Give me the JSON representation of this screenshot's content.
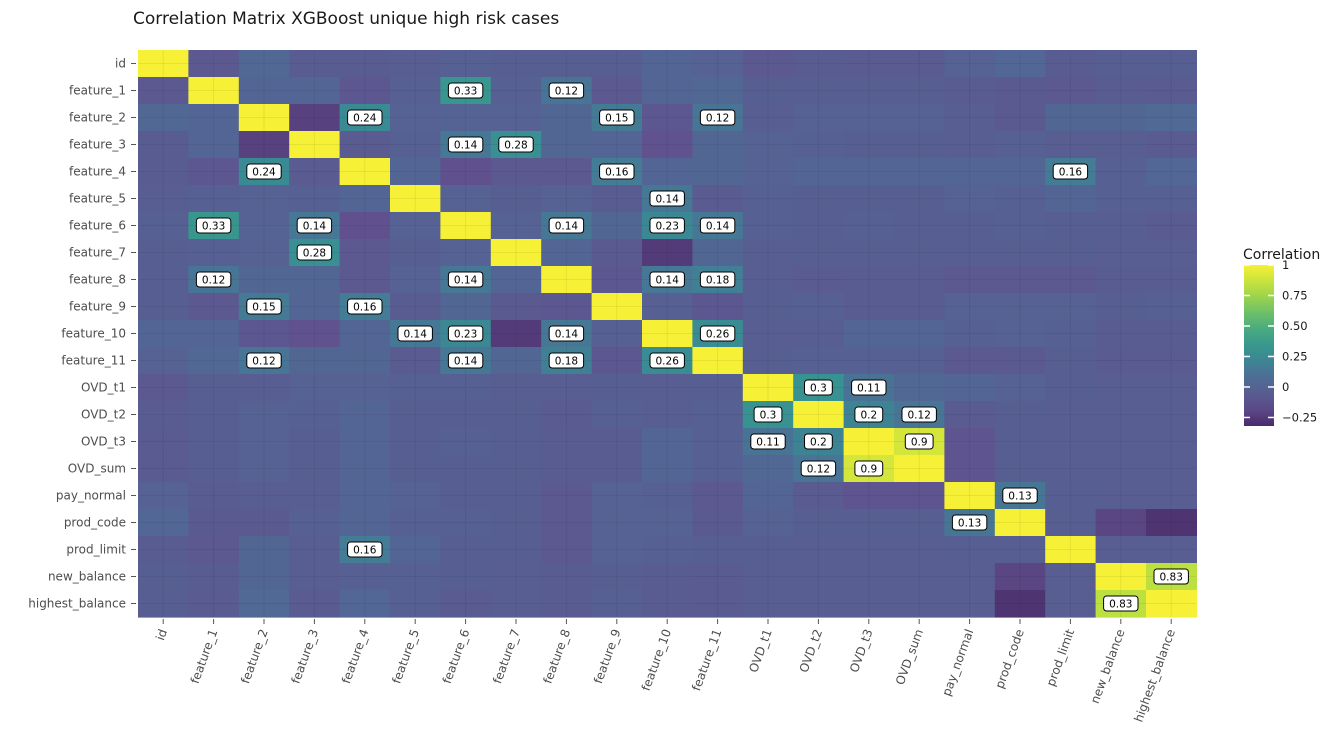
{
  "chart_data": {
    "type": "heatmap",
    "title": "Correlation Matrix XGBoost unique high risk cases",
    "xlabel": "",
    "ylabel": "",
    "variables": [
      "id",
      "feature_1",
      "feature_2",
      "feature_3",
      "feature_4",
      "feature_5",
      "feature_6",
      "feature_7",
      "feature_8",
      "feature_9",
      "feature_10",
      "feature_11",
      "OVD_t1",
      "OVD_t2",
      "OVD_t3",
      "OVD_sum",
      "pay_normal",
      "prod_code",
      "prod_limit",
      "new_balance",
      "highest_balance"
    ],
    "legend": {
      "title": "Correlation",
      "ticks": [
        1,
        0.75,
        0.5,
        0.25,
        0,
        -0.25
      ],
      "tick_labels": [
        "1",
        "0.75",
        "0.50",
        "0.25",
        "0",
        "−0.25"
      ],
      "placement": "right"
    },
    "value_range": [
      -0.32,
      1
    ],
    "label_threshold": 0.1,
    "matrix": [
      [
        1,
        -0.08,
        0.05,
        -0.05,
        -0.05,
        -0.04,
        -0.02,
        -0.03,
        -0.03,
        -0.03,
        0.02,
        0.0,
        -0.08,
        -0.05,
        -0.06,
        -0.06,
        0.0,
        0.04,
        -0.05,
        -0.03,
        -0.03
      ],
      [
        -0.08,
        1,
        0.02,
        0.02,
        -0.1,
        -0.02,
        0.33,
        -0.02,
        0.12,
        -0.08,
        0.02,
        0.05,
        -0.03,
        -0.03,
        -0.03,
        -0.03,
        -0.05,
        -0.07,
        -0.09,
        -0.05,
        -0.06
      ],
      [
        0.05,
        0.02,
        1,
        -0.22,
        0.24,
        0.0,
        0.01,
        0.0,
        0.03,
        0.15,
        -0.1,
        0.12,
        -0.04,
        0.0,
        0.0,
        0.0,
        -0.04,
        -0.07,
        0.03,
        0.03,
        0.06
      ],
      [
        -0.05,
        0.02,
        -0.22,
        1,
        -0.06,
        -0.02,
        0.14,
        0.28,
        0.03,
        0.02,
        -0.14,
        0.03,
        0.0,
        -0.02,
        -0.03,
        -0.03,
        -0.04,
        -0.02,
        -0.04,
        -0.04,
        -0.06
      ],
      [
        -0.05,
        -0.1,
        0.24,
        -0.06,
        1,
        0.02,
        -0.15,
        -0.08,
        -0.09,
        0.16,
        0.02,
        0.03,
        0.0,
        0.02,
        0.02,
        0.02,
        0.02,
        0.02,
        0.16,
        -0.02,
        0.04
      ],
      [
        -0.04,
        -0.02,
        0.0,
        -0.02,
        0.02,
        1,
        0.0,
        -0.03,
        0.0,
        -0.05,
        0.14,
        -0.06,
        -0.02,
        -0.03,
        -0.03,
        -0.03,
        0.0,
        -0.02,
        0.02,
        -0.02,
        -0.02
      ],
      [
        -0.02,
        0.33,
        0.01,
        0.14,
        -0.15,
        0.0,
        1,
        0.0,
        0.14,
        0.03,
        0.23,
        0.14,
        -0.02,
        -0.03,
        -0.02,
        -0.03,
        -0.03,
        -0.02,
        -0.03,
        -0.03,
        -0.06
      ],
      [
        -0.03,
        -0.02,
        0.0,
        0.28,
        -0.08,
        -0.03,
        0.0,
        1,
        0.02,
        -0.07,
        -0.25,
        0.03,
        -0.04,
        -0.03,
        -0.03,
        -0.03,
        -0.03,
        -0.03,
        -0.03,
        -0.04,
        -0.04
      ],
      [
        -0.03,
        0.12,
        0.03,
        0.03,
        -0.09,
        0.0,
        0.14,
        0.02,
        1,
        -0.1,
        0.14,
        0.18,
        -0.04,
        -0.06,
        -0.05,
        -0.05,
        -0.08,
        -0.08,
        -0.08,
        -0.05,
        -0.05
      ],
      [
        -0.03,
        -0.08,
        0.15,
        0.02,
        0.16,
        -0.05,
        0.03,
        -0.07,
        -0.1,
        1,
        -0.02,
        -0.1,
        -0.03,
        -0.02,
        -0.05,
        -0.05,
        0.0,
        0.0,
        0.0,
        -0.03,
        -0.02
      ],
      [
        0.02,
        0.02,
        -0.1,
        -0.14,
        0.02,
        0.14,
        0.23,
        -0.25,
        0.14,
        -0.02,
        1,
        0.26,
        -0.04,
        -0.04,
        0.02,
        0.02,
        -0.02,
        0.0,
        -0.02,
        -0.05,
        -0.05
      ],
      [
        0.0,
        0.05,
        0.12,
        0.03,
        0.03,
        -0.06,
        0.14,
        0.03,
        0.18,
        -0.1,
        0.26,
        1,
        -0.03,
        -0.02,
        -0.02,
        -0.02,
        -0.08,
        -0.07,
        -0.03,
        -0.06,
        -0.06
      ],
      [
        -0.08,
        -0.03,
        -0.04,
        0.0,
        0.0,
        -0.02,
        -0.02,
        -0.04,
        -0.04,
        -0.03,
        -0.04,
        -0.03,
        1,
        0.3,
        0.11,
        0.05,
        0.02,
        0.0,
        -0.03,
        -0.04,
        -0.04
      ],
      [
        -0.05,
        -0.03,
        0.0,
        -0.02,
        0.02,
        -0.03,
        -0.03,
        -0.03,
        -0.06,
        -0.02,
        -0.04,
        -0.02,
        0.3,
        1,
        0.2,
        0.12,
        -0.06,
        -0.03,
        -0.04,
        -0.04,
        -0.04
      ],
      [
        -0.06,
        -0.03,
        0.0,
        -0.03,
        0.02,
        -0.03,
        -0.02,
        -0.03,
        -0.05,
        -0.05,
        0.02,
        -0.02,
        0.11,
        0.2,
        1,
        0.9,
        -0.12,
        -0.03,
        -0.04,
        -0.04,
        -0.04
      ],
      [
        -0.06,
        -0.03,
        0.0,
        -0.03,
        0.02,
        -0.03,
        -0.03,
        -0.03,
        -0.05,
        -0.05,
        0.02,
        -0.02,
        0.05,
        0.12,
        0.9,
        1,
        -0.12,
        -0.03,
        -0.04,
        -0.04,
        -0.04
      ],
      [
        0.0,
        -0.05,
        -0.04,
        -0.04,
        0.02,
        0.0,
        -0.03,
        -0.03,
        -0.08,
        0.0,
        -0.02,
        -0.08,
        0.02,
        -0.06,
        -0.12,
        -0.12,
        1,
        0.13,
        -0.03,
        -0.04,
        -0.04
      ],
      [
        0.04,
        -0.07,
        -0.07,
        -0.02,
        0.02,
        -0.02,
        -0.02,
        -0.03,
        -0.08,
        0.0,
        0.0,
        -0.07,
        0.0,
        -0.03,
        -0.03,
        -0.03,
        0.13,
        1,
        -0.03,
        -0.2,
        -0.28
      ],
      [
        -0.05,
        -0.09,
        0.03,
        -0.04,
        0.16,
        0.02,
        -0.03,
        -0.03,
        -0.08,
        0.0,
        -0.02,
        -0.03,
        -0.03,
        -0.04,
        -0.04,
        -0.04,
        -0.03,
        -0.03,
        1,
        -0.04,
        -0.04
      ],
      [
        -0.03,
        -0.05,
        0.03,
        -0.04,
        -0.02,
        -0.02,
        -0.03,
        -0.04,
        -0.05,
        -0.03,
        -0.05,
        -0.06,
        -0.04,
        -0.04,
        -0.04,
        -0.04,
        -0.04,
        -0.2,
        -0.04,
        1,
        0.83
      ],
      [
        -0.03,
        -0.06,
        0.06,
        -0.06,
        0.04,
        -0.02,
        -0.06,
        -0.04,
        -0.05,
        -0.02,
        -0.05,
        -0.06,
        -0.04,
        -0.04,
        -0.04,
        -0.04,
        -0.04,
        -0.28,
        -0.04,
        0.83,
        1
      ]
    ]
  }
}
